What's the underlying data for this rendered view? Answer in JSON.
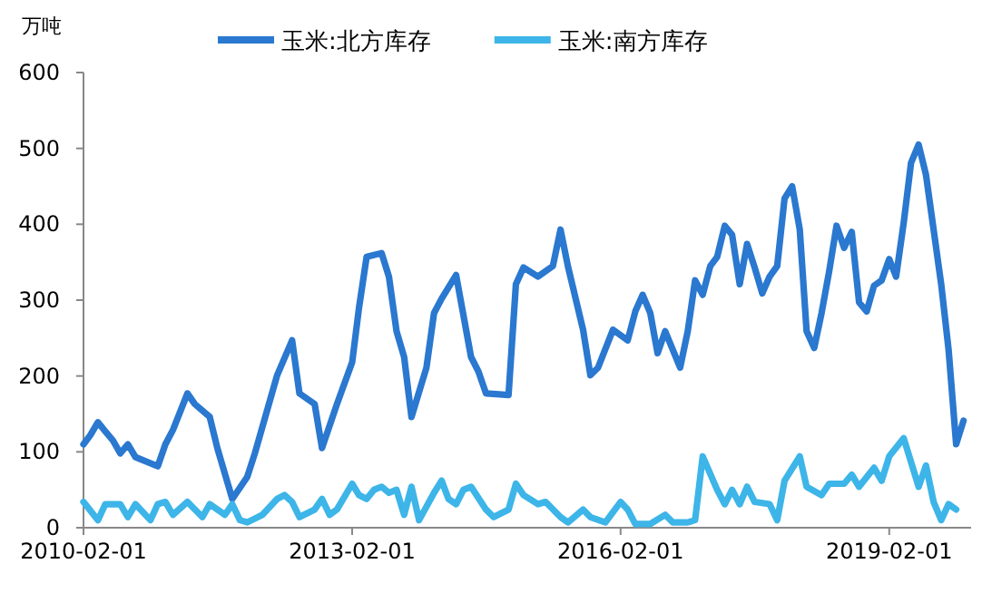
{
  "chart_data": {
    "type": "line",
    "ylabel": "万吨",
    "legend": "top",
    "line_style": "solid",
    "marker": "none",
    "xlim": [
      "2010-02-01",
      "2020-01-01"
    ],
    "xticks": [
      "2010-02-01",
      "2013-02-01",
      "2016-02-01",
      "2019-02-01"
    ],
    "ylim": [
      0,
      600
    ],
    "yticks": [
      0,
      100,
      200,
      300,
      400,
      500,
      600
    ],
    "series": [
      {
        "name": "玉米:北方库存",
        "color": "#2a78cf",
        "x": [
          "2010-02",
          "2010-03",
          "2010-04",
          "2010-05",
          "2010-06",
          "2010-07",
          "2010-08",
          "2010-09",
          "2010-12",
          "2011-01",
          "2011-02",
          "2011-04",
          "2011-05",
          "2011-07",
          "2011-08",
          "2011-10",
          "2011-12",
          "2012-01",
          "2012-04",
          "2012-06",
          "2012-07",
          "2012-09",
          "2012-10",
          "2012-12",
          "2013-02",
          "2013-03",
          "2013-04",
          "2013-06",
          "2013-07",
          "2013-08",
          "2013-09",
          "2013-10",
          "2013-12",
          "2014-01",
          "2014-02",
          "2014-04",
          "2014-06",
          "2014-07",
          "2014-08",
          "2014-11",
          "2014-12",
          "2015-01",
          "2015-03",
          "2015-05",
          "2015-06",
          "2015-07",
          "2015-09",
          "2015-10",
          "2015-11",
          "2016-01",
          "2016-03",
          "2016-04",
          "2016-05",
          "2016-06",
          "2016-07",
          "2016-08",
          "2016-10",
          "2016-11",
          "2016-12",
          "2017-01",
          "2017-02",
          "2017-03",
          "2017-04",
          "2017-05",
          "2017-06",
          "2017-07",
          "2017-08",
          "2017-09",
          "2017-10",
          "2017-11",
          "2017-12",
          "2018-01",
          "2018-02",
          "2018-03",
          "2018-04",
          "2018-05",
          "2018-06",
          "2018-07",
          "2018-08",
          "2018-09",
          "2018-10",
          "2018-11",
          "2018-12",
          "2019-01",
          "2019-02",
          "2019-03",
          "2019-04",
          "2019-05",
          "2019-06",
          "2019-07",
          "2019-08",
          "2019-09",
          "2019-10",
          "2019-11",
          "2019-12"
        ],
        "values": [
          110,
          122,
          139,
          127,
          115,
          98,
          110,
          93,
          81,
          110,
          129,
          177,
          163,
          146,
          105,
          38,
          67,
          98,
          201,
          247,
          177,
          163,
          105,
          163,
          218,
          290,
          357,
          362,
          331,
          259,
          225,
          146,
          211,
          283,
          302,
          333,
          225,
          206,
          177,
          175,
          321,
          343,
          331,
          345,
          393,
          345,
          261,
          201,
          211,
          261,
          247,
          285,
          307,
          283,
          230,
          259,
          211,
          259,
          326,
          307,
          345,
          357,
          398,
          386,
          321,
          374,
          343,
          309,
          331,
          345,
          434,
          450,
          393,
          259,
          237,
          283,
          338,
          398,
          369,
          390,
          297,
          285,
          319,
          326,
          354,
          331,
          402,
          481,
          505,
          465,
          393,
          321,
          235,
          110,
          141
        ]
      },
      {
        "name": "玉米:南方库存",
        "color": "#3db5e8",
        "x": [
          "2010-02",
          "2010-04",
          "2010-05",
          "2010-07",
          "2010-08",
          "2010-09",
          "2010-11",
          "2010-12",
          "2011-01",
          "2011-02",
          "2011-04",
          "2011-06",
          "2011-07",
          "2011-09",
          "2011-10",
          "2011-11",
          "2011-12",
          "2012-02",
          "2012-04",
          "2012-05",
          "2012-06",
          "2012-07",
          "2012-09",
          "2012-10",
          "2012-11",
          "2012-12",
          "2013-02",
          "2013-03",
          "2013-04",
          "2013-05",
          "2013-06",
          "2013-07",
          "2013-08",
          "2013-09",
          "2013-10",
          "2013-11",
          "2014-01",
          "2014-02",
          "2014-03",
          "2014-04",
          "2014-05",
          "2014-06",
          "2014-08",
          "2014-09",
          "2014-11",
          "2014-12",
          "2015-01",
          "2015-03",
          "2015-04",
          "2015-06",
          "2015-07",
          "2015-09",
          "2015-10",
          "2015-12",
          "2016-02",
          "2016-03",
          "2016-04",
          "2016-06",
          "2016-08",
          "2016-09",
          "2016-11",
          "2016-12",
          "2017-01",
          "2017-03",
          "2017-04",
          "2017-05",
          "2017-06",
          "2017-07",
          "2017-08",
          "2017-10",
          "2017-11",
          "2017-12",
          "2018-02",
          "2018-03",
          "2018-05",
          "2018-06",
          "2018-08",
          "2018-09",
          "2018-10",
          "2018-12",
          "2019-01",
          "2019-02",
          "2019-04",
          "2019-06",
          "2019-07",
          "2019-08",
          "2019-09",
          "2019-10",
          "2019-11"
        ],
        "values": [
          34,
          10,
          31,
          31,
          14,
          31,
          10,
          31,
          34,
          17,
          34,
          14,
          31,
          17,
          31,
          10,
          7,
          17,
          38,
          43,
          34,
          14,
          24,
          38,
          17,
          24,
          58,
          43,
          38,
          50,
          54,
          46,
          50,
          17,
          54,
          10,
          46,
          62,
          38,
          31,
          50,
          54,
          24,
          14,
          24,
          58,
          43,
          31,
          34,
          14,
          7,
          24,
          14,
          7,
          34,
          24,
          5,
          5,
          17,
          7,
          7,
          10,
          94,
          50,
          31,
          50,
          31,
          54,
          34,
          31,
          10,
          62,
          94,
          54,
          43,
          58,
          58,
          70,
          54,
          79,
          62,
          94,
          118,
          54,
          82,
          34,
          10,
          31,
          24
        ]
      }
    ]
  }
}
